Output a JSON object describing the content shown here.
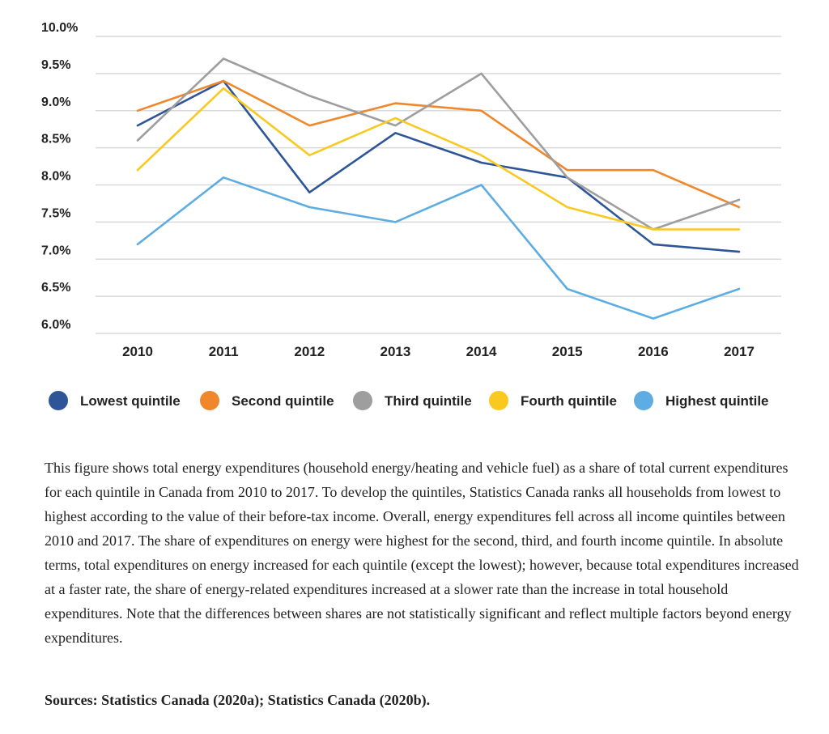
{
  "chart_data": {
    "type": "line",
    "title": "",
    "xlabel": "",
    "ylabel": "",
    "categories": [
      "2010",
      "2011",
      "2012",
      "2013",
      "2014",
      "2015",
      "2016",
      "2017"
    ],
    "ylim": [
      6.0,
      10.0
    ],
    "yticks": [
      "6.0%",
      "6.5%",
      "7.0%",
      "7.5%",
      "8.0%",
      "8.5%",
      "9.0%",
      "9.5%",
      "10.0%"
    ],
    "grid": true,
    "legend_position": "bottom",
    "series": [
      {
        "name": "Lowest quintile",
        "color": "#2e5597",
        "values": [
          8.8,
          9.4,
          7.9,
          8.7,
          8.3,
          8.1,
          7.2,
          7.1
        ]
      },
      {
        "name": "Second quintile",
        "color": "#f0872a",
        "values": [
          9.0,
          9.4,
          8.8,
          9.1,
          9.0,
          8.2,
          8.2,
          7.7
        ]
      },
      {
        "name": "Third quintile",
        "color": "#9e9e9e",
        "values": [
          8.6,
          9.7,
          9.2,
          8.8,
          9.5,
          8.1,
          7.4,
          7.8
        ]
      },
      {
        "name": "Fourth quintile",
        "color": "#f9c920",
        "values": [
          8.2,
          9.3,
          8.4,
          8.9,
          8.4,
          7.7,
          7.4,
          7.4
        ]
      },
      {
        "name": "Highest quintile",
        "color": "#5dade2",
        "values": [
          7.2,
          8.1,
          7.7,
          7.5,
          8.0,
          6.6,
          6.2,
          6.6
        ]
      }
    ]
  },
  "caption": "This figure shows total energy expenditures (household energy/heating and vehicle fuel) as a share of total current expenditures for each quintile in Canada from 2010 to 2017. To develop the quintiles, Statistics Canada ranks all households from lowest to highest according to the value of their before-tax income. Overall, energy expenditures fell across all income quintiles between 2010 and 2017. The share of expenditures on energy were highest for the second, third, and fourth income quintile. In absolute terms, total expenditures on energy increased for each quintile (except the lowest); however, because total expenditures increased at a faster rate, the share of energy-related expenditures increased at a slower rate than the increase in total household expenditures. Note that the differences between shares are not statistically significant and reflect multiple factors beyond energy expenditures.",
  "sources": "Sources: Statistics Canada (2020a); Statistics Canada (2020b)."
}
